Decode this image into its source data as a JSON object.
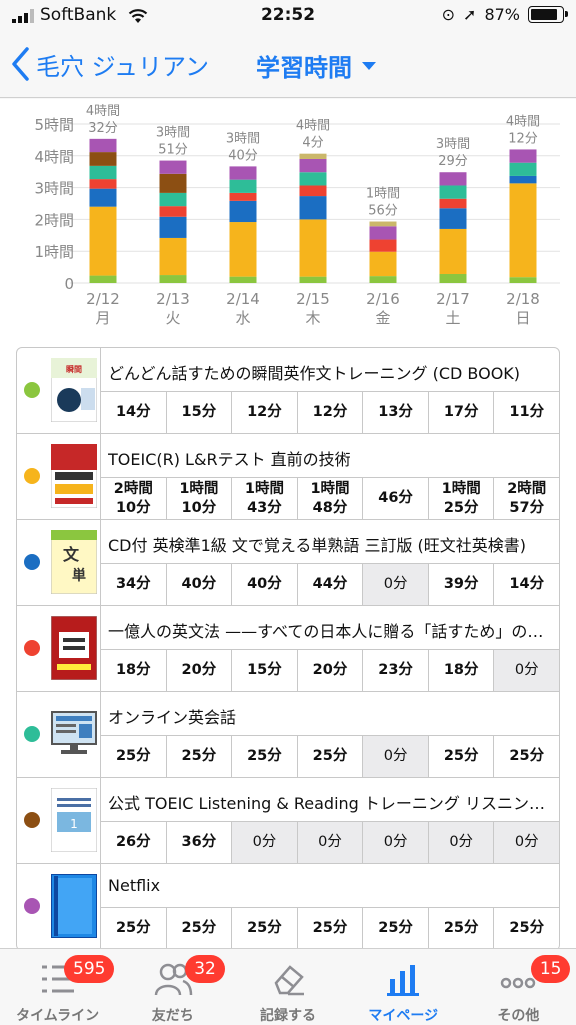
{
  "status_bar": {
    "carrier": "SoftBank",
    "time": "22:52",
    "battery": "87%",
    "battery_level": 0.87
  },
  "nav": {
    "back_label": "毛穴 ジュリアン",
    "title": "学習時間"
  },
  "colors": {
    "accent": "#1e7cf2",
    "green": "#8bc63f",
    "yellow": "#f6b41c",
    "blue": "#1b6ec2",
    "red": "#ee4231",
    "teal": "#2ebd98",
    "brown": "#8c4f13",
    "purple": "#a855b3"
  },
  "chart_data": {
    "type": "bar",
    "stacked": true,
    "ylim": [
      0,
      300
    ],
    "yticks": [
      0,
      60,
      120,
      180,
      240,
      300
    ],
    "ytick_labels": [
      "0",
      "1時間",
      "2時間",
      "3時間",
      "4時間",
      "5時間"
    ],
    "categories": [
      "2/12 月",
      "2/13 火",
      "2/14 水",
      "2/15 木",
      "2/16 金",
      "2/17 土",
      "2/18 日"
    ],
    "category_dates": [
      "2/12",
      "2/13",
      "2/14",
      "2/15",
      "2/16",
      "2/17",
      "2/18"
    ],
    "category_days": [
      "月",
      "火",
      "水",
      "木",
      "金",
      "土",
      "日"
    ],
    "totals": [
      272,
      231,
      220,
      244,
      116,
      209,
      252
    ],
    "total_labels": [
      [
        "4時間",
        "32分"
      ],
      [
        "3時間",
        "51分"
      ],
      [
        "3時間",
        "40分"
      ],
      [
        "4時間",
        "4分"
      ],
      [
        "1時間",
        "56分"
      ],
      [
        "3時間",
        "29分"
      ],
      [
        "4時間",
        "12分"
      ]
    ],
    "series": [
      {
        "color": "#8bc63f",
        "values": [
          14,
          15,
          12,
          12,
          13,
          17,
          11
        ]
      },
      {
        "color": "#f6b41c",
        "values": [
          130,
          70,
          103,
          108,
          46,
          85,
          177
        ]
      },
      {
        "color": "#1b6ec2",
        "values": [
          34,
          40,
          40,
          44,
          0,
          39,
          14
        ]
      },
      {
        "color": "#ee4231",
        "values": [
          18,
          20,
          15,
          20,
          23,
          18,
          0
        ]
      },
      {
        "color": "#2ebd98",
        "values": [
          25,
          25,
          25,
          25,
          0,
          25,
          25
        ]
      },
      {
        "color": "#8c4f13",
        "values": [
          26,
          36,
          0,
          0,
          0,
          0,
          0
        ]
      },
      {
        "color": "#a855b3",
        "values": [
          25,
          25,
          25,
          25,
          25,
          25,
          25
        ]
      },
      {
        "color": "#cbb76a",
        "values": [
          0,
          0,
          0,
          10,
          9,
          0,
          0
        ]
      }
    ]
  },
  "materials": [
    {
      "name": "どんどん話すための瞬間英作文トレーニング (CD BOOK)",
      "color": "#8bc63f",
      "cover": "book-green",
      "cells": [
        "14分",
        "15分",
        "12分",
        "12分",
        "13分",
        "17分",
        "11分"
      ]
    },
    {
      "name": "TOEIC(R) L&Rテスト 直前の技術",
      "color": "#f6b41c",
      "cover": "book-red",
      "cells": [
        "2時間\n10分",
        "1時間\n10分",
        "1時間\n43分",
        "1時間\n48分",
        "46分",
        "1時間\n25分",
        "2時間\n57分"
      ]
    },
    {
      "name": "CD付 英検準1級 文で覚える単熟語 三訂版 (旺文社英検書)",
      "color": "#1b6ec2",
      "cover": "book-yellow",
      "cells": [
        "34分",
        "40分",
        "40分",
        "44分",
        "0分",
        "39分",
        "14分"
      ]
    },
    {
      "name": "一億人の英文法 ——すべての日本人に贈る「話すため」の…",
      "color": "#ee4231",
      "cover": "book-darkred",
      "cells": [
        "18分",
        "20分",
        "15分",
        "20分",
        "23分",
        "18分",
        "0分"
      ]
    },
    {
      "name": "オンライン英会話",
      "color": "#2ebd98",
      "cover": "monitor",
      "cells": [
        "25分",
        "25分",
        "25分",
        "25分",
        "0分",
        "25分",
        "25分"
      ]
    },
    {
      "name": "公式 TOEIC Listening & Reading トレーニング リスニン…",
      "color": "#8c4f13",
      "cover": "book-white",
      "cells": [
        "26分",
        "36分",
        "0分",
        "0分",
        "0分",
        "0分",
        "0分"
      ]
    },
    {
      "name": "Netflix",
      "color": "#a855b3",
      "cover": "book-blue",
      "cells": [
        "25分",
        "25分",
        "25分",
        "25分",
        "25分",
        "25分",
        "25分"
      ]
    }
  ],
  "tabs": [
    {
      "label": "タイムライン",
      "icon": "list-icon",
      "badge": "595"
    },
    {
      "label": "友だち",
      "icon": "friends-icon",
      "badge": "32"
    },
    {
      "label": "記録する",
      "icon": "eraser-icon",
      "badge": ""
    },
    {
      "label": "マイページ",
      "icon": "bar-chart-icon",
      "badge": "",
      "active": true
    },
    {
      "label": "その他",
      "icon": "more-icon",
      "badge": "15"
    }
  ]
}
